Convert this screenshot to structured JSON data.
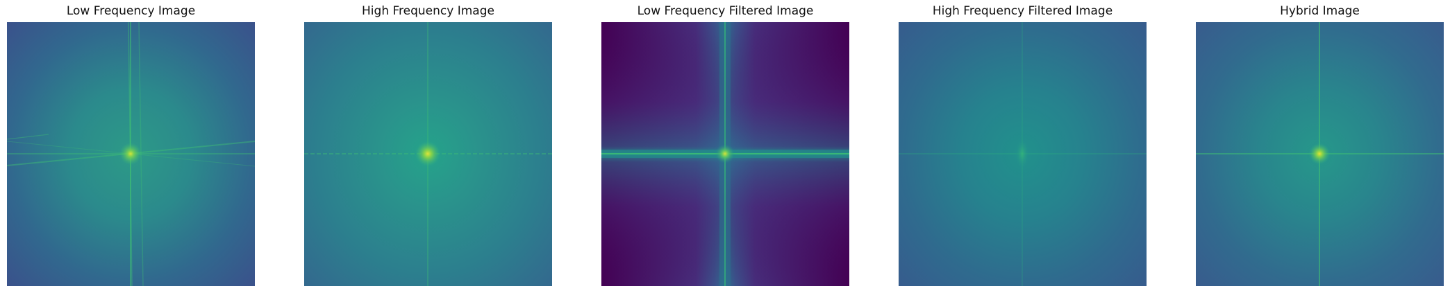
{
  "figure": {
    "panels": [
      {
        "title": "Low Frequency Image"
      },
      {
        "title": "High Frequency Image"
      },
      {
        "title": "Low Frequency Filtered Image"
      },
      {
        "title": "High Frequency Filtered Image"
      },
      {
        "title": "Hybrid Image"
      }
    ]
  },
  "colors": {
    "viridis_dark": "#440154",
    "viridis_purple": "#3b2a73",
    "viridis_blue": "#3a5f8e",
    "viridis_teal": "#2a8a8a",
    "viridis_green": "#3fbf74",
    "viridis_yellow": "#d4e33a"
  }
}
